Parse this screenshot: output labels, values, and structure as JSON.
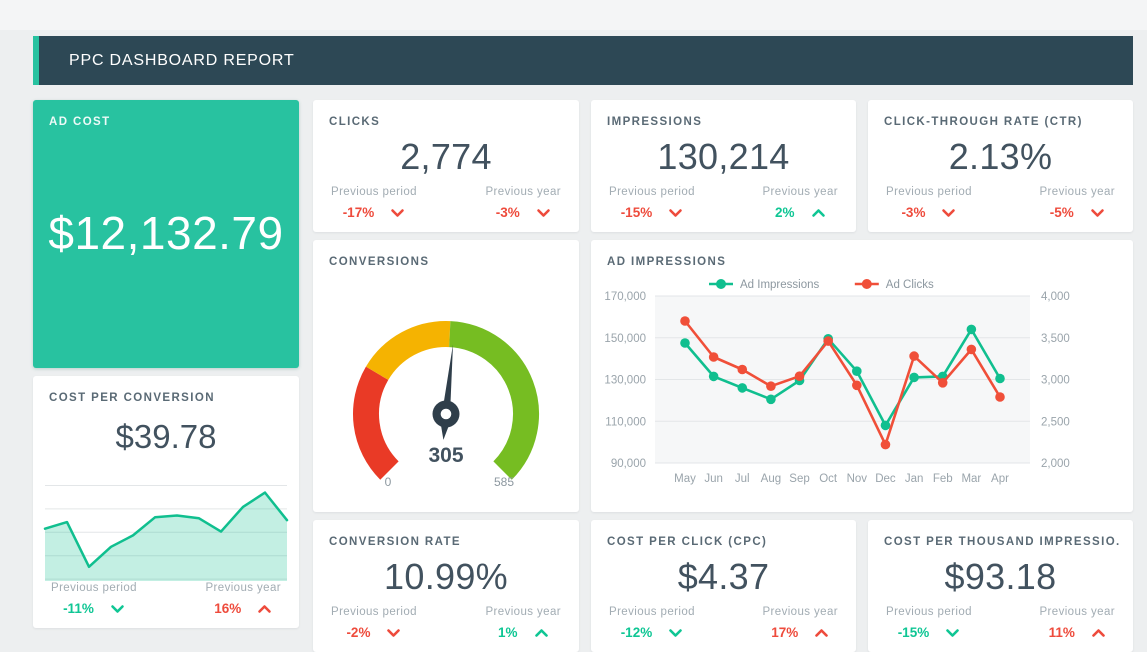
{
  "header": {
    "title": "PPC DASHBOARD REPORT"
  },
  "labels": {
    "prev_period": "Previous period",
    "prev_year": "Previous year"
  },
  "colors": {
    "page_bg": "#edeff0",
    "card_bg": "#ffffff",
    "header_bg": "#2d4855",
    "accent": "#28c2a0",
    "positive": "#0fc694",
    "negative": "#ee4b3c",
    "value_text": "#42525f",
    "title_text": "#5a6a75",
    "muted_text": "#a2acb3",
    "grid_line": "#e3e6e8",
    "plot_bg": "#f6f7f8",
    "axis_text": "#9aa4ab",
    "legend_text": "#8d98a0",
    "gauge_red": "#e93a26",
    "gauge_yellow": "#f5b301",
    "gauge_green": "#76bd22",
    "needle": "#2f3e4a",
    "line_green": "#10bf8f",
    "line_red": "#f04f39",
    "spark_fill": "rgba(16,191,143,0.25)"
  },
  "cards": {
    "ad_cost": {
      "title": "AD COST",
      "value": "$12,132.79"
    },
    "clicks": {
      "title": "CLICKS",
      "value": "2,774",
      "prev_period": {
        "value": "-17%",
        "dir": "down",
        "tone": "negative"
      },
      "prev_year": {
        "value": "-3%",
        "dir": "down",
        "tone": "negative"
      }
    },
    "impressions": {
      "title": "IMPRESSIONS",
      "value": "130,214",
      "prev_period": {
        "value": "-15%",
        "dir": "down",
        "tone": "negative"
      },
      "prev_year": {
        "value": "2%",
        "dir": "up",
        "tone": "positive"
      }
    },
    "ctr": {
      "title": "CLICK-THROUGH RATE (CTR)",
      "value": "2.13%",
      "prev_period": {
        "value": "-3%",
        "dir": "down",
        "tone": "negative"
      },
      "prev_year": {
        "value": "-5%",
        "dir": "down",
        "tone": "negative"
      }
    },
    "conversions": {
      "title": "CONVERSIONS"
    },
    "ad_impressions": {
      "title": "AD IMPRESSIONS"
    },
    "cost_per_conversion": {
      "title": "COST PER CONVERSION",
      "value": "$39.78",
      "prev_period": {
        "value": "-11%",
        "dir": "down",
        "tone": "positive"
      },
      "prev_year": {
        "value": "16%",
        "dir": "up",
        "tone": "negative"
      }
    },
    "conversion_rate": {
      "title": "CONVERSION RATE",
      "value": "10.99%",
      "prev_period": {
        "value": "-2%",
        "dir": "down",
        "tone": "negative"
      },
      "prev_year": {
        "value": "1%",
        "dir": "up",
        "tone": "positive"
      }
    },
    "cpc": {
      "title": "COST PER CLICK (CPC)",
      "value": "$4.37",
      "prev_period": {
        "value": "-12%",
        "dir": "down",
        "tone": "positive"
      },
      "prev_year": {
        "value": "17%",
        "dir": "up",
        "tone": "negative"
      }
    },
    "cpm": {
      "title": "COST PER THOUSAND IMPRESSIO...",
      "value": "$93.18",
      "prev_period": {
        "value": "-15%",
        "dir": "down",
        "tone": "positive"
      },
      "prev_year": {
        "value": "11%",
        "dir": "up",
        "tone": "negative"
      }
    }
  },
  "chart_data": [
    {
      "id": "ad-impressions-line",
      "type": "line",
      "title": "AD IMPRESSIONS",
      "x": [
        "May",
        "Jun",
        "Jul",
        "Aug",
        "Sep",
        "Oct",
        "Nov",
        "Dec",
        "Jan",
        "Feb",
        "Mar",
        "Apr"
      ],
      "series": [
        {
          "name": "Ad Impressions",
          "axis": "left",
          "color": "#10bf8f",
          "values": [
            147500,
            131500,
            126000,
            120500,
            129500,
            149500,
            134000,
            108000,
            131000,
            131500,
            154000,
            130500
          ]
        },
        {
          "name": "Ad Clicks",
          "axis": "right",
          "color": "#f04f39",
          "values": [
            3700,
            3270,
            3120,
            2920,
            3040,
            3460,
            2930,
            2220,
            3280,
            2960,
            3360,
            2790
          ]
        }
      ],
      "left_axis": {
        "min": 90000,
        "max": 170000,
        "ticks": [
          "170,000",
          "150,000",
          "130,000",
          "110,000",
          "90,000"
        ]
      },
      "right_axis": {
        "min": 2000,
        "max": 4000,
        "ticks": [
          "4,000",
          "3,500",
          "3,000",
          "2,500",
          "2,000"
        ]
      },
      "legend_position": "top",
      "grid": true
    },
    {
      "id": "cost-per-conversion-spark",
      "type": "area",
      "values": [
        55,
        62,
        15,
        36,
        48,
        67,
        69,
        66,
        52,
        78,
        93,
        64
      ],
      "ymin": 0,
      "ymax": 100,
      "grid": true
    },
    {
      "id": "conversions-gauge",
      "type": "gauge",
      "min": 0,
      "max": 585,
      "value": 305,
      "value_label": "305",
      "segments": [
        {
          "color": "#e93a26",
          "to": 0.28
        },
        {
          "color": "#f5b301",
          "to": 0.51
        },
        {
          "color": "#76bd22",
          "to": 1
        }
      ]
    }
  ]
}
